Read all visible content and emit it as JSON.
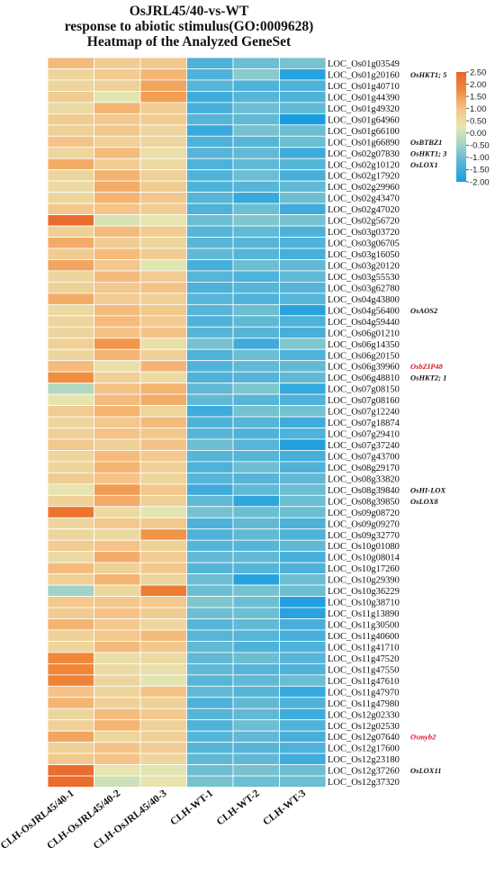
{
  "chart_data": {
    "type": "heatmap",
    "title": [
      "OsJRL45/40-vs-WT",
      "response to abiotic stimulus(GO:0009628)",
      "Heatmap of the Analyzed GeneSet"
    ],
    "columns": [
      "CLH-OsJRL45/40-1",
      "CLH-OsJRL45/40-2",
      "CLH-OsJRL45/40-3",
      "CLH-WT-1",
      "CLH-WT-2",
      "CLH-WT-3"
    ],
    "colorbar": {
      "ticks": [
        "2.50",
        "2.00",
        "1.50",
        "1.00",
        "0.50",
        "0.00",
        "-0.50",
        "-1.00",
        "-1.50",
        "-2.00"
      ],
      "range": [
        -2.0,
        2.5
      ],
      "colors": [
        "#1a9de0",
        "#52b3d8",
        "#9fd3c8",
        "#e6e6b0",
        "#f5c387",
        "#f08a3a",
        "#e9632a"
      ]
    },
    "rows": [
      {
        "gene": "LOC_Os01g03549",
        "name": "",
        "values": [
          1.1,
          0.8,
          0.9,
          -1.3,
          -1.0,
          -0.9
        ]
      },
      {
        "gene": "LOC_Os01g20160",
        "name": "OsHKT1; 5",
        "name_color": "#111111",
        "values": [
          0.6,
          0.8,
          1.2,
          -1.3,
          -0.7,
          -1.8
        ]
      },
      {
        "gene": "LOC_Os01g40710",
        "name": "",
        "values": [
          0.6,
          0.7,
          1.4,
          -1.2,
          -1.3,
          -1.3
        ]
      },
      {
        "gene": "LOC_Os01g44390",
        "name": "",
        "values": [
          0.8,
          0.2,
          1.5,
          -1.5,
          -1.2,
          -1.3
        ]
      },
      {
        "gene": "LOC_Os01g49320",
        "name": "",
        "values": [
          0.5,
          1.2,
          0.8,
          -1.4,
          -1.0,
          -1.1
        ]
      },
      {
        "gene": "LOC_Os01g64960",
        "name": "",
        "values": [
          0.8,
          0.9,
          0.8,
          -1.2,
          -1.1,
          -2.0
        ]
      },
      {
        "gene": "LOC_Os01g66100",
        "name": "",
        "values": [
          0.7,
          0.9,
          0.6,
          -1.6,
          -0.9,
          -1.0
        ]
      },
      {
        "gene": "LOC_Os01g66890",
        "name": "OsBTBZ1",
        "name_color": "#111111",
        "values": [
          1.0,
          0.7,
          0.6,
          -1.3,
          -1.2,
          -1.0
        ]
      },
      {
        "gene": "LOC_Os02g07830",
        "name": "OsHKT1; 3",
        "name_color": "#111111",
        "values": [
          0.6,
          1.1,
          0.4,
          -1.2,
          -1.1,
          -1.5
        ]
      },
      {
        "gene": "LOC_Os02g10120",
        "name": "OsLOX1",
        "name_color": "#111111",
        "values": [
          1.3,
          0.8,
          0.5,
          -1.3,
          -1.1,
          -1.2
        ]
      },
      {
        "gene": "LOC_Os02g17920",
        "name": "",
        "values": [
          0.6,
          1.2,
          0.7,
          -1.3,
          -1.0,
          -1.4
        ]
      },
      {
        "gene": "LOC_Os02g29960",
        "name": "",
        "values": [
          0.5,
          1.3,
          0.8,
          -1.3,
          -1.2,
          -1.1
        ]
      },
      {
        "gene": "LOC_Os02g43470",
        "name": "",
        "values": [
          0.6,
          1.2,
          0.9,
          -1.2,
          -1.6,
          -1.0
        ]
      },
      {
        "gene": "LOC_Os02g47020",
        "name": "",
        "values": [
          0.9,
          1.0,
          0.8,
          -1.3,
          -1.0,
          -1.5
        ]
      },
      {
        "gene": "LOC_Os02g56720",
        "name": "",
        "values": [
          2.3,
          0.1,
          0.3,
          -1.0,
          -0.8,
          -0.9
        ]
      },
      {
        "gene": "LOC_Os03g03720",
        "name": "",
        "values": [
          0.7,
          1.1,
          0.8,
          -1.2,
          -1.1,
          -1.3
        ]
      },
      {
        "gene": "LOC_Os03g06705",
        "name": "",
        "values": [
          1.3,
          0.8,
          0.6,
          -1.2,
          -1.2,
          -1.3
        ]
      },
      {
        "gene": "LOC_Os03g16050",
        "name": "",
        "values": [
          0.8,
          1.1,
          0.8,
          -1.1,
          -1.2,
          -1.4
        ]
      },
      {
        "gene": "LOC_Os03g20120",
        "name": "",
        "values": [
          1.4,
          0.9,
          0.2,
          -1.4,
          -1.0,
          -1.1
        ]
      },
      {
        "gene": "LOC_Os03g55530",
        "name": "",
        "values": [
          0.6,
          1.1,
          0.8,
          -1.2,
          -1.3,
          -1.1
        ]
      },
      {
        "gene": "LOC_Os03g62780",
        "name": "",
        "values": [
          0.7,
          0.9,
          1.0,
          -1.3,
          -1.2,
          -1.2
        ]
      },
      {
        "gene": "LOC_Os04g43800",
        "name": "",
        "values": [
          1.3,
          0.8,
          0.7,
          -1.2,
          -1.3,
          -1.2
        ]
      },
      {
        "gene": "LOC_Os04g56400",
        "name": "OsAOS2",
        "name_color": "#111111",
        "values": [
          0.5,
          1.1,
          0.9,
          -1.2,
          -1.0,
          -1.8
        ]
      },
      {
        "gene": "LOC_Os04g59440",
        "name": "",
        "values": [
          0.6,
          1.1,
          0.8,
          -1.3,
          -1.1,
          -1.3
        ]
      },
      {
        "gene": "LOC_Os06g01210",
        "name": "",
        "values": [
          0.6,
          1.0,
          1.0,
          -1.2,
          -1.2,
          -1.4
        ]
      },
      {
        "gene": "LOC_Os06g14350",
        "name": "",
        "values": [
          0.7,
          1.6,
          0.4,
          -0.9,
          -1.5,
          -0.8
        ]
      },
      {
        "gene": "LOC_Os06g20150",
        "name": "",
        "values": [
          0.6,
          1.2,
          0.7,
          -1.3,
          -1.0,
          -1.3
        ]
      },
      {
        "gene": "LOC_Os06g39960",
        "name": "OsbZIP48",
        "name_color": "#e0182d",
        "values": [
          1.1,
          0.4,
          1.2,
          -1.3,
          -1.1,
          -1.1
        ]
      },
      {
        "gene": "LOC_Os06g48810",
        "name": "OsHKT2; 1",
        "name_color": "#111111",
        "values": [
          1.7,
          0.7,
          0.5,
          -1.3,
          -1.2,
          -1.1
        ]
      },
      {
        "gene": "LOC_Os07g08150",
        "name": "",
        "values": [
          -0.3,
          1.0,
          1.2,
          -1.1,
          -0.8,
          -1.6
        ]
      },
      {
        "gene": "LOC_Os07g08160",
        "name": "",
        "values": [
          0.3,
          1.1,
          1.3,
          -1.1,
          -1.2,
          -1.3
        ]
      },
      {
        "gene": "LOC_Os07g12240",
        "name": "",
        "values": [
          0.8,
          1.2,
          0.6,
          -1.5,
          -0.9,
          -0.9
        ]
      },
      {
        "gene": "LOC_Os07g18874",
        "name": "",
        "values": [
          0.6,
          0.9,
          1.1,
          -1.3,
          -1.2,
          -1.5
        ]
      },
      {
        "gene": "LOC_Os07g29410",
        "name": "",
        "values": [
          0.7,
          1.0,
          0.9,
          -1.2,
          -1.3,
          -1.3
        ]
      },
      {
        "gene": "LOC_Os07g37240",
        "name": "",
        "values": [
          0.9,
          0.7,
          1.0,
          -1.0,
          -1.2,
          -1.9
        ]
      },
      {
        "gene": "LOC_Os07g43700",
        "name": "",
        "values": [
          0.6,
          1.1,
          0.9,
          -1.2,
          -1.2,
          -1.4
        ]
      },
      {
        "gene": "LOC_Os08g29170",
        "name": "",
        "values": [
          0.6,
          1.2,
          0.7,
          -1.3,
          -1.0,
          -1.3
        ]
      },
      {
        "gene": "LOC_Os08g33820",
        "name": "",
        "values": [
          0.8,
          1.0,
          0.6,
          -1.2,
          -1.2,
          -1.1
        ]
      },
      {
        "gene": "LOC_Os08g39840",
        "name": "OsHI-LOX",
        "name_color": "#111111",
        "values": [
          0.3,
          1.5,
          0.9,
          -1.5,
          -1.1,
          -1.0
        ]
      },
      {
        "gene": "LOC_Os08g39850",
        "name": "OsLOX8",
        "name_color": "#111111",
        "values": [
          0.7,
          1.3,
          0.7,
          -1.1,
          -1.7,
          -1.0
        ]
      },
      {
        "gene": "LOC_Os09g08720",
        "name": "",
        "values": [
          2.2,
          0.5,
          0.2,
          -0.9,
          -1.0,
          -1.0
        ]
      },
      {
        "gene": "LOC_Os09g09270",
        "name": "",
        "values": [
          0.6,
          0.9,
          0.9,
          -1.3,
          -1.1,
          -1.3
        ]
      },
      {
        "gene": "LOC_Os09g32770",
        "name": "",
        "values": [
          0.6,
          0.5,
          1.6,
          -1.3,
          -1.1,
          -1.3
        ]
      },
      {
        "gene": "LOC_Os10g01080",
        "name": "",
        "values": [
          0.8,
          1.0,
          0.7,
          -1.2,
          -1.2,
          -1.1
        ]
      },
      {
        "gene": "LOC_Os10g08014",
        "name": "",
        "values": [
          0.5,
          1.3,
          0.8,
          -1.1,
          -1.1,
          -1.4
        ]
      },
      {
        "gene": "LOC_Os10g17260",
        "name": "",
        "values": [
          1.1,
          0.7,
          0.9,
          -1.2,
          -1.2,
          -1.3
        ]
      },
      {
        "gene": "LOC_Os10g29390",
        "name": "",
        "values": [
          0.7,
          1.2,
          0.6,
          -1.0,
          -1.8,
          -1.0
        ]
      },
      {
        "gene": "LOC_Os10g36229",
        "name": "",
        "values": [
          -0.5,
          0.6,
          2.0,
          -1.0,
          -0.9,
          -1.0
        ]
      },
      {
        "gene": "LOC_Os10g38710",
        "name": "",
        "values": [
          0.9,
          0.9,
          0.9,
          -0.8,
          -1.0,
          -1.9
        ]
      },
      {
        "gene": "LOC_Os11g13890",
        "name": "",
        "values": [
          0.8,
          1.0,
          0.8,
          -1.0,
          -1.0,
          -1.8
        ]
      },
      {
        "gene": "LOC_Os11g30500",
        "name": "",
        "values": [
          1.2,
          0.9,
          0.6,
          -1.2,
          -1.1,
          -1.4
        ]
      },
      {
        "gene": "LOC_Os11g40600",
        "name": "",
        "values": [
          0.7,
          0.9,
          1.1,
          -1.2,
          -1.2,
          -1.4
        ]
      },
      {
        "gene": "LOC_Os11g41710",
        "name": "",
        "values": [
          0.6,
          1.1,
          0.9,
          -1.1,
          -1.3,
          -1.3
        ]
      },
      {
        "gene": "LOC_Os11g47520",
        "name": "",
        "values": [
          1.8,
          0.4,
          0.5,
          -1.1,
          -1.0,
          -1.2
        ]
      },
      {
        "gene": "LOC_Os11g47550",
        "name": "",
        "values": [
          1.8,
          0.5,
          0.4,
          -1.1,
          -1.2,
          -1.3
        ]
      },
      {
        "gene": "LOC_Os11g47610",
        "name": "",
        "values": [
          1.9,
          0.6,
          0.2,
          -1.2,
          -1.1,
          -1.0
        ]
      },
      {
        "gene": "LOC_Os11g47970",
        "name": "",
        "values": [
          1.0,
          0.6,
          1.0,
          -1.1,
          -1.2,
          -1.6
        ]
      },
      {
        "gene": "LOC_Os11g47980",
        "name": "",
        "values": [
          1.2,
          0.7,
          0.7,
          -1.3,
          -1.1,
          -1.3
        ]
      },
      {
        "gene": "LOC_Os12g02330",
        "name": "",
        "values": [
          0.6,
          1.1,
          0.9,
          -1.2,
          -1.1,
          -1.5
        ]
      },
      {
        "gene": "LOC_Os12g02530",
        "name": "",
        "values": [
          0.7,
          1.2,
          0.7,
          -1.3,
          -1.0,
          -1.3
        ]
      },
      {
        "gene": "LOC_Os12g07640",
        "name": "Osmyb2",
        "name_color": "#e0182d",
        "values": [
          1.4,
          0.6,
          0.7,
          -1.2,
          -1.1,
          -1.4
        ]
      },
      {
        "gene": "LOC_Os12g17600",
        "name": "",
        "values": [
          0.7,
          1.0,
          0.8,
          -1.2,
          -1.2,
          -1.3
        ]
      },
      {
        "gene": "LOC_Os12g23180",
        "name": "",
        "values": [
          0.9,
          1.0,
          0.6,
          -1.1,
          -1.1,
          -1.5
        ]
      },
      {
        "gene": "LOC_Os12g37260",
        "name": "OsLOX11",
        "name_color": "#111111",
        "values": [
          2.3,
          0.3,
          0.2,
          -1.0,
          -0.9,
          -1.0
        ]
      },
      {
        "gene": "LOC_Os12g37320",
        "name": "",
        "values": [
          2.3,
          0.0,
          0.3,
          -0.9,
          -1.0,
          -1.0
        ]
      }
    ]
  }
}
